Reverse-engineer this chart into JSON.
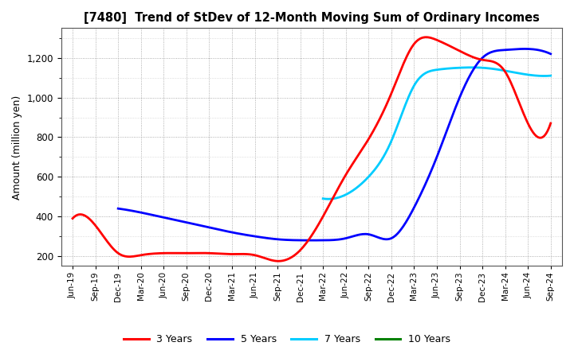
{
  "title": "[7480]  Trend of StDev of 12-Month Moving Sum of Ordinary Incomes",
  "ylabel": "Amount (million yen)",
  "background_color": "#ffffff",
  "grid_color": "#888888",
  "ylim": [
    150,
    1350
  ],
  "yticks": [
    200,
    400,
    600,
    800,
    1000,
    1200
  ],
  "x_labels": [
    "Jun-19",
    "Sep-19",
    "Dec-19",
    "Mar-20",
    "Jun-20",
    "Sep-20",
    "Dec-20",
    "Mar-21",
    "Jun-21",
    "Sep-21",
    "Dec-21",
    "Mar-22",
    "Jun-22",
    "Sep-22",
    "Dec-22",
    "Mar-23",
    "Jun-23",
    "Sep-23",
    "Dec-23",
    "Mar-24",
    "Jun-24",
    "Sep-24"
  ],
  "series_3yr": {
    "color": "#ff0000",
    "linewidth": 2.0,
    "x": [
      0,
      1,
      2,
      3,
      4,
      5,
      6,
      7,
      8,
      9,
      10,
      11,
      12,
      13,
      14,
      15,
      16,
      17,
      18,
      19,
      20,
      21
    ],
    "y": [
      390,
      355,
      215,
      205,
      215,
      215,
      215,
      210,
      205,
      175,
      230,
      400,
      610,
      790,
      1020,
      1270,
      1290,
      1235,
      1190,
      1130,
      870,
      870
    ]
  },
  "series_5yr": {
    "color": "#0000ff",
    "linewidth": 2.0,
    "x": [
      2,
      3,
      4,
      5,
      6,
      7,
      8,
      9,
      10,
      11,
      12,
      13,
      14,
      15,
      16,
      17,
      18,
      19,
      20,
      21
    ],
    "y": [
      440,
      420,
      395,
      370,
      345,
      320,
      300,
      285,
      280,
      280,
      290,
      310,
      290,
      445,
      700,
      1000,
      1200,
      1240,
      1245,
      1220
    ]
  },
  "series_7yr": {
    "color": "#00ccff",
    "linewidth": 2.0,
    "x": [
      11,
      12,
      13,
      14,
      15,
      16,
      17,
      18,
      19,
      20,
      21
    ],
    "y": [
      490,
      510,
      600,
      780,
      1060,
      1140,
      1150,
      1150,
      1135,
      1115,
      1110
    ]
  },
  "series_10yr": {
    "color": "#008000",
    "linewidth": 2.0,
    "x": [],
    "y": []
  },
  "legend_labels": [
    "3 Years",
    "5 Years",
    "7 Years",
    "10 Years"
  ],
  "legend_colors": [
    "#ff0000",
    "#0000ff",
    "#00ccff",
    "#008000"
  ]
}
